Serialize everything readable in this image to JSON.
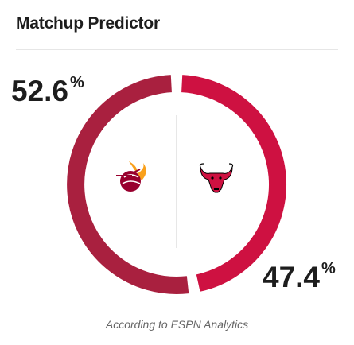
{
  "header": {
    "title": "Matchup Predictor"
  },
  "predictor": {
    "home": {
      "team": "Miami Heat",
      "percent": 52.6,
      "display": "52.6",
      "color": "#a9203f",
      "logo_icon": "heat-logo-icon"
    },
    "away": {
      "team": "Chicago Bulls",
      "percent": 47.4,
      "display": "47.4",
      "color": "#ce1141",
      "logo_icon": "bulls-logo-icon"
    },
    "percent_symbol": "%"
  },
  "footer": {
    "source": "According to ESPN Analytics"
  }
}
